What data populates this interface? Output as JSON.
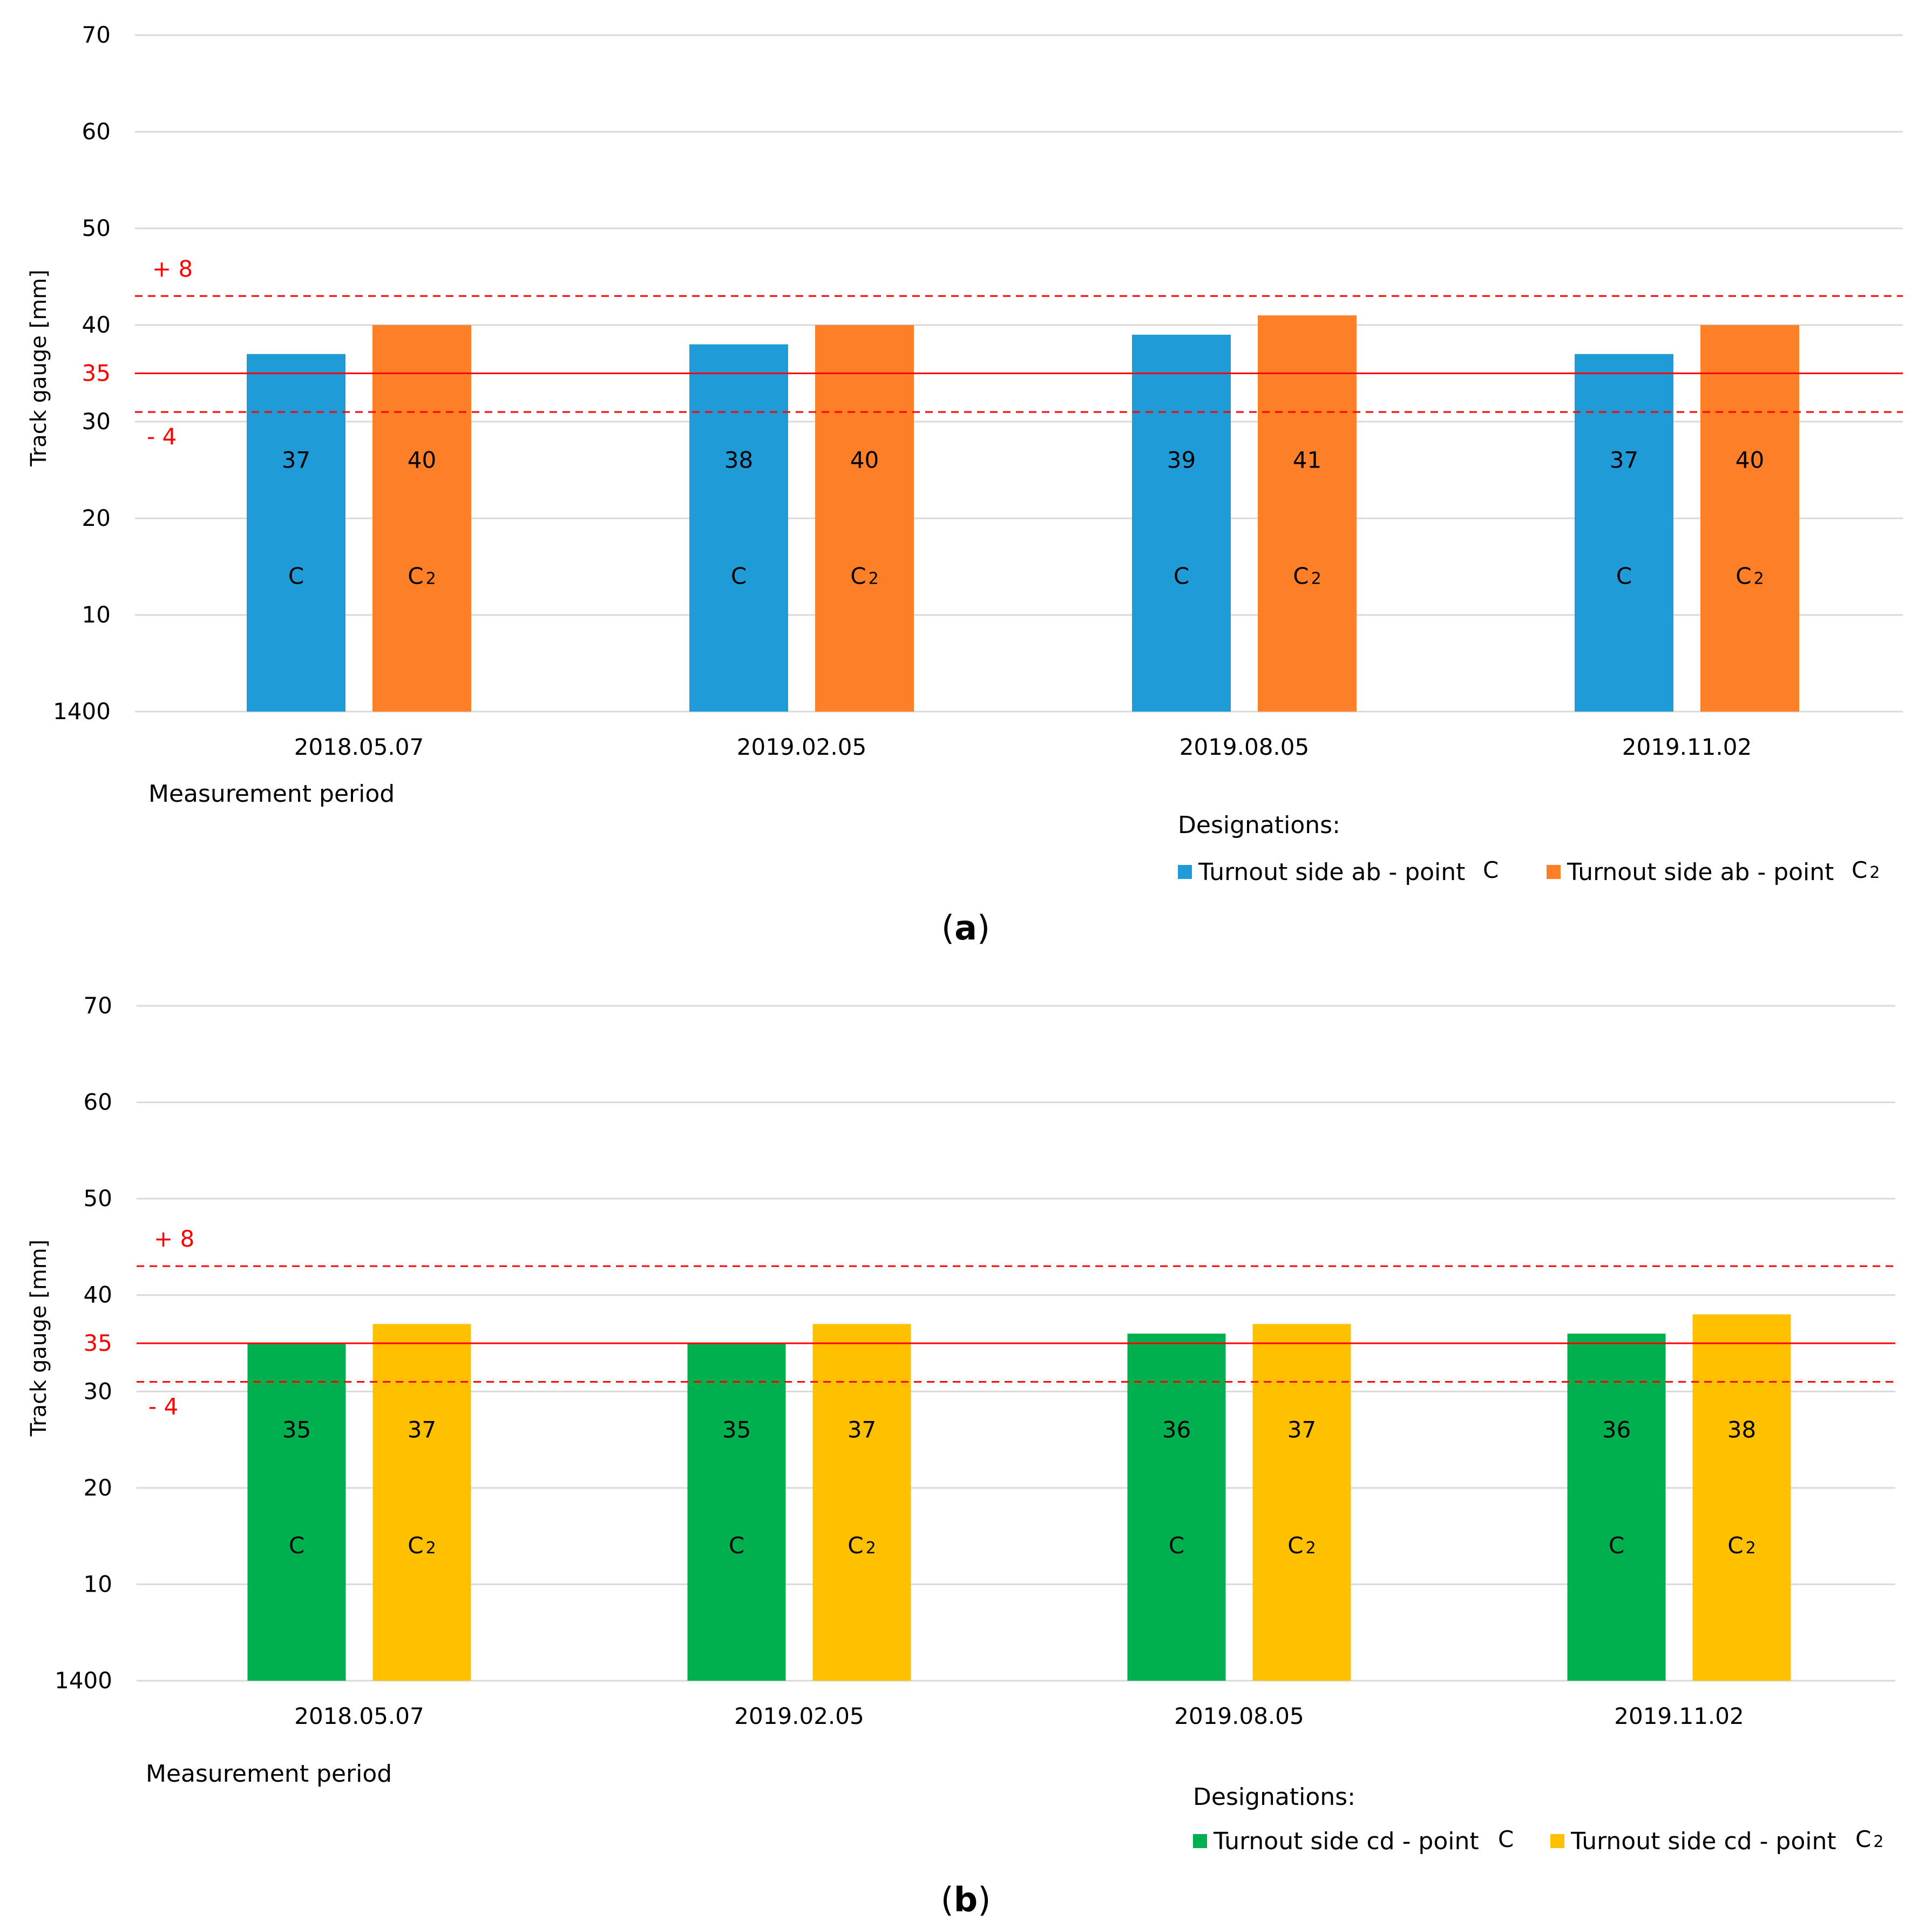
{
  "panels": [
    {
      "caption": "a",
      "designations_label": "Designations:"
    },
    {
      "caption": "b",
      "designations_label": "Designations:"
    }
  ],
  "chart_data": [
    {
      "type": "bar",
      "panel": "a",
      "categories": [
        "2018.05.07",
        "2019.02.05",
        "2019.08.05",
        "2019.11.02"
      ],
      "series": [
        {
          "name": "Turnout side ab - point C",
          "legend_prefix": "Turnout side ab - point",
          "legend_point": "C",
          "point_label": "C",
          "color": "#1f9bd7",
          "values": [
            37,
            38,
            39,
            37
          ]
        },
        {
          "name": "Turnout side ab - point C2",
          "legend_prefix": "Turnout side ab - point",
          "legend_point": "C2",
          "point_label": "C2",
          "color": "#fd7f27",
          "values": [
            40,
            40,
            41,
            40
          ]
        }
      ],
      "ylabel": "Track gauge [mm]",
      "xlabel": "Measurement period",
      "ylim": [
        0,
        70
      ],
      "ytick_values": [
        0,
        10,
        20,
        30,
        40,
        50,
        60,
        70
      ],
      "ytick_labels": [
        "1400",
        "10",
        "20",
        "30",
        "40",
        "50",
        "60",
        "70"
      ],
      "nominal": {
        "value": 35,
        "label": "35",
        "color": "#ff0000"
      },
      "tolerance_upper": {
        "value": 43,
        "label": "+ 8",
        "color": "#ff0000"
      },
      "tolerance_lower": {
        "value": 31,
        "label": "- 4",
        "color": "#ff0000"
      },
      "grid": true,
      "legend_position": "bottom-right"
    },
    {
      "type": "bar",
      "panel": "b",
      "categories": [
        "2018.05.07",
        "2019.02.05",
        "2019.08.05",
        "2019.11.02"
      ],
      "series": [
        {
          "name": "Turnout side cd - point C",
          "legend_prefix": "Turnout side cd - point",
          "legend_point": "C",
          "point_label": "C",
          "color": "#00b04f",
          "values": [
            35,
            35,
            36,
            36
          ]
        },
        {
          "name": "Turnout side cd - point C2",
          "legend_prefix": "Turnout side cd - point",
          "legend_point": "C2",
          "point_label": "C2",
          "color": "#ffc000",
          "values": [
            37,
            37,
            37,
            38
          ]
        }
      ],
      "ylabel": "Track gauge [mm]",
      "xlabel": "Measurement period",
      "ylim": [
        0,
        70
      ],
      "ytick_values": [
        0,
        10,
        20,
        30,
        40,
        50,
        60,
        70
      ],
      "ytick_labels": [
        "1400",
        "10",
        "20",
        "30",
        "40",
        "50",
        "60",
        "70"
      ],
      "nominal": {
        "value": 35,
        "label": "35",
        "color": "#ff0000"
      },
      "tolerance_upper": {
        "value": 43,
        "label": "+ 8",
        "color": "#ff0000"
      },
      "tolerance_lower": {
        "value": 31,
        "label": "- 4",
        "color": "#ff0000"
      },
      "grid": true,
      "legend_position": "bottom-right"
    }
  ]
}
